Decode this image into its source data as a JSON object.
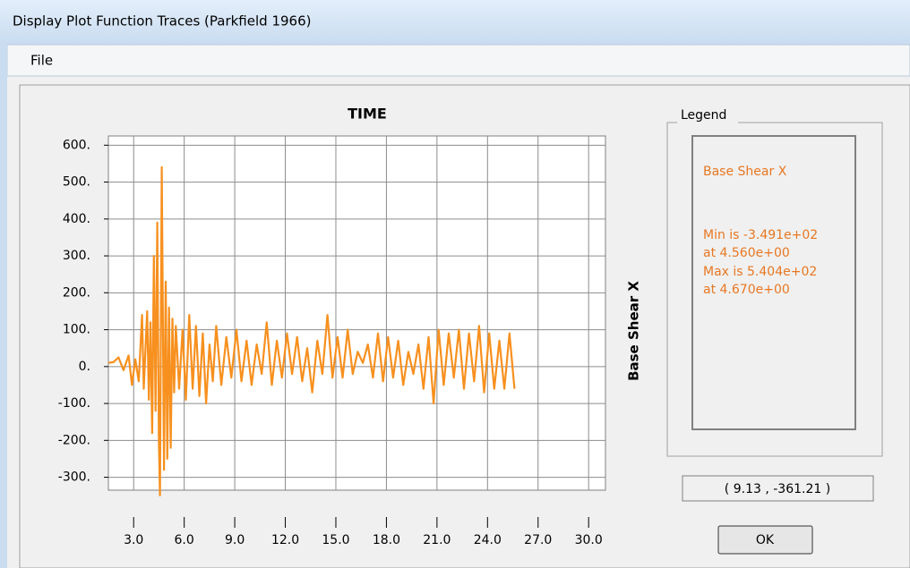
{
  "window": {
    "title": "Display Plot Function Traces  (Parkfield 1966)",
    "menu": [
      "File"
    ],
    "coordinates": "( 9.13 , -361.21 )",
    "button": "OK"
  },
  "chart_data": {
    "type": "line",
    "title": "TIME",
    "y_label": "Base Shear X",
    "legend": {
      "title": "Legend",
      "lines": [
        "Min is -3.491e+02",
        "at 4.560e+00",
        "Max is 5.404e+02",
        "at 4.670e+00"
      ]
    },
    "x": [
      1.5,
      1.8,
      2.1,
      2.4,
      2.7,
      2.9,
      3.1,
      3.3,
      3.5,
      3.6,
      3.8,
      3.9,
      4.0,
      4.1,
      4.2,
      4.3,
      4.4,
      4.5,
      4.56,
      4.67,
      4.8,
      4.9,
      5.0,
      5.1,
      5.2,
      5.3,
      5.4,
      5.5,
      5.7,
      5.9,
      6.1,
      6.3,
      6.5,
      6.7,
      6.9,
      7.1,
      7.3,
      7.5,
      7.7,
      7.9,
      8.2,
      8.5,
      8.8,
      9.1,
      9.4,
      9.7,
      10.0,
      10.3,
      10.6,
      10.9,
      11.2,
      11.5,
      11.8,
      12.1,
      12.4,
      12.7,
      13.0,
      13.3,
      13.6,
      13.9,
      14.2,
      14.5,
      14.8,
      15.1,
      15.4,
      15.7,
      16.0,
      16.3,
      16.6,
      16.9,
      17.2,
      17.5,
      17.8,
      18.1,
      18.4,
      18.7,
      19.0,
      19.3,
      19.6,
      19.9,
      20.2,
      20.5,
      20.8,
      21.1,
      21.4,
      21.7,
      22.0,
      22.3,
      22.6,
      22.9,
      23.2,
      23.5,
      23.8,
      24.1,
      24.4,
      24.7,
      25.0,
      25.3,
      25.6
    ],
    "series": [
      {
        "name": "Base Shear X",
        "color": "#f7901e",
        "values": [
          10,
          12,
          25,
          -10,
          30,
          -50,
          20,
          -40,
          140,
          -60,
          150,
          -90,
          120,
          -180,
          300,
          -120,
          390,
          -200,
          -349.1,
          540.4,
          -280,
          230,
          -250,
          160,
          -220,
          130,
          -70,
          110,
          -60,
          100,
          -90,
          140,
          -60,
          110,
          -80,
          90,
          -100,
          60,
          -40,
          110,
          -50,
          80,
          -30,
          100,
          -40,
          70,
          -50,
          60,
          -20,
          120,
          -50,
          70,
          -30,
          90,
          -20,
          80,
          -40,
          50,
          -70,
          70,
          -20,
          140,
          -30,
          80,
          -30,
          100,
          -20,
          40,
          10,
          60,
          -30,
          90,
          -40,
          80,
          -30,
          70,
          -50,
          40,
          -20,
          60,
          -60,
          80,
          -100,
          100,
          -50,
          90,
          -30,
          100,
          -60,
          90,
          -40,
          110,
          -70,
          90,
          -60,
          70,
          -60,
          90,
          -60
        ]
      }
    ],
    "xlim": [
      1.5,
      31
    ],
    "ylim": [
      -335,
      625
    ],
    "xticks": [
      {
        "value": 3,
        "label": "3.0"
      },
      {
        "value": 6,
        "label": "6.0"
      },
      {
        "value": 9,
        "label": "9.0"
      },
      {
        "value": 12,
        "label": "12.0"
      },
      {
        "value": 15,
        "label": "15.0"
      },
      {
        "value": 18,
        "label": "18.0"
      },
      {
        "value": 21,
        "label": "21.0"
      },
      {
        "value": 24,
        "label": "24.0"
      },
      {
        "value": 27,
        "label": "27.0"
      },
      {
        "value": 30,
        "label": "30.0"
      }
    ],
    "yticks": [
      {
        "value": 600,
        "label": "600."
      },
      {
        "value": 500,
        "label": "500."
      },
      {
        "value": 400,
        "label": "400."
      },
      {
        "value": 300,
        "label": "300."
      },
      {
        "value": 200,
        "label": "200."
      },
      {
        "value": 100,
        "label": "100."
      },
      {
        "value": 0,
        "label": "0."
      },
      {
        "value": -100,
        "label": "-100."
      },
      {
        "value": -200,
        "label": "-200."
      },
      {
        "value": -300,
        "label": "-300."
      }
    ],
    "grid": true
  }
}
